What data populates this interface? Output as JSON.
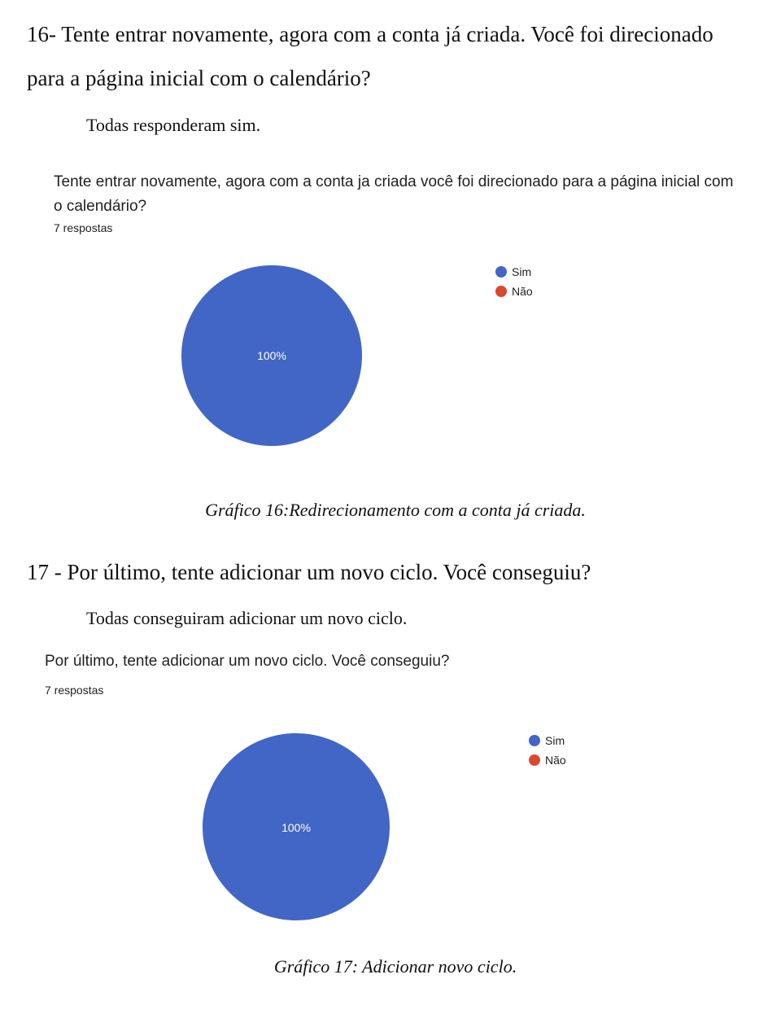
{
  "section16": {
    "question_line1": "16- Tente entrar novamente, agora com a conta já criada. Você foi direcionado",
    "question_line2": "para a página inicial com o calendário?",
    "answer": "Todas responderam sim.",
    "form_title_line1": "Tente entrar novamente, agora com a conta ja criada você foi direcionado para a página inicial com",
    "form_title_line2": "o calendário?",
    "responses": "7 respostas",
    "caption": "Gráfico 16:Redirecionamento com a conta já criada."
  },
  "section17": {
    "question": "17 - Por último, tente adicionar um novo ciclo. Você conseguiu?",
    "answer": "Todas conseguiram adicionar um novo ciclo.",
    "form_title": "Por último, tente adicionar um novo ciclo. Você conseguiu?",
    "responses": "7 respostas",
    "caption": "Gráfico 17: Adicionar novo ciclo."
  },
  "chart_data": [
    {
      "type": "pie",
      "categories": [
        "Sim",
        "Não"
      ],
      "values": [
        100,
        0
      ],
      "slice_labels": [
        "100%",
        ""
      ],
      "colors": [
        "#4266c5",
        "#d9482f"
      ],
      "legend_position": "right"
    },
    {
      "type": "pie",
      "categories": [
        "Sim",
        "Não"
      ],
      "values": [
        100,
        0
      ],
      "slice_labels": [
        "100%",
        ""
      ],
      "colors": [
        "#4266c5",
        "#d9482f"
      ],
      "legend_position": "right"
    }
  ]
}
